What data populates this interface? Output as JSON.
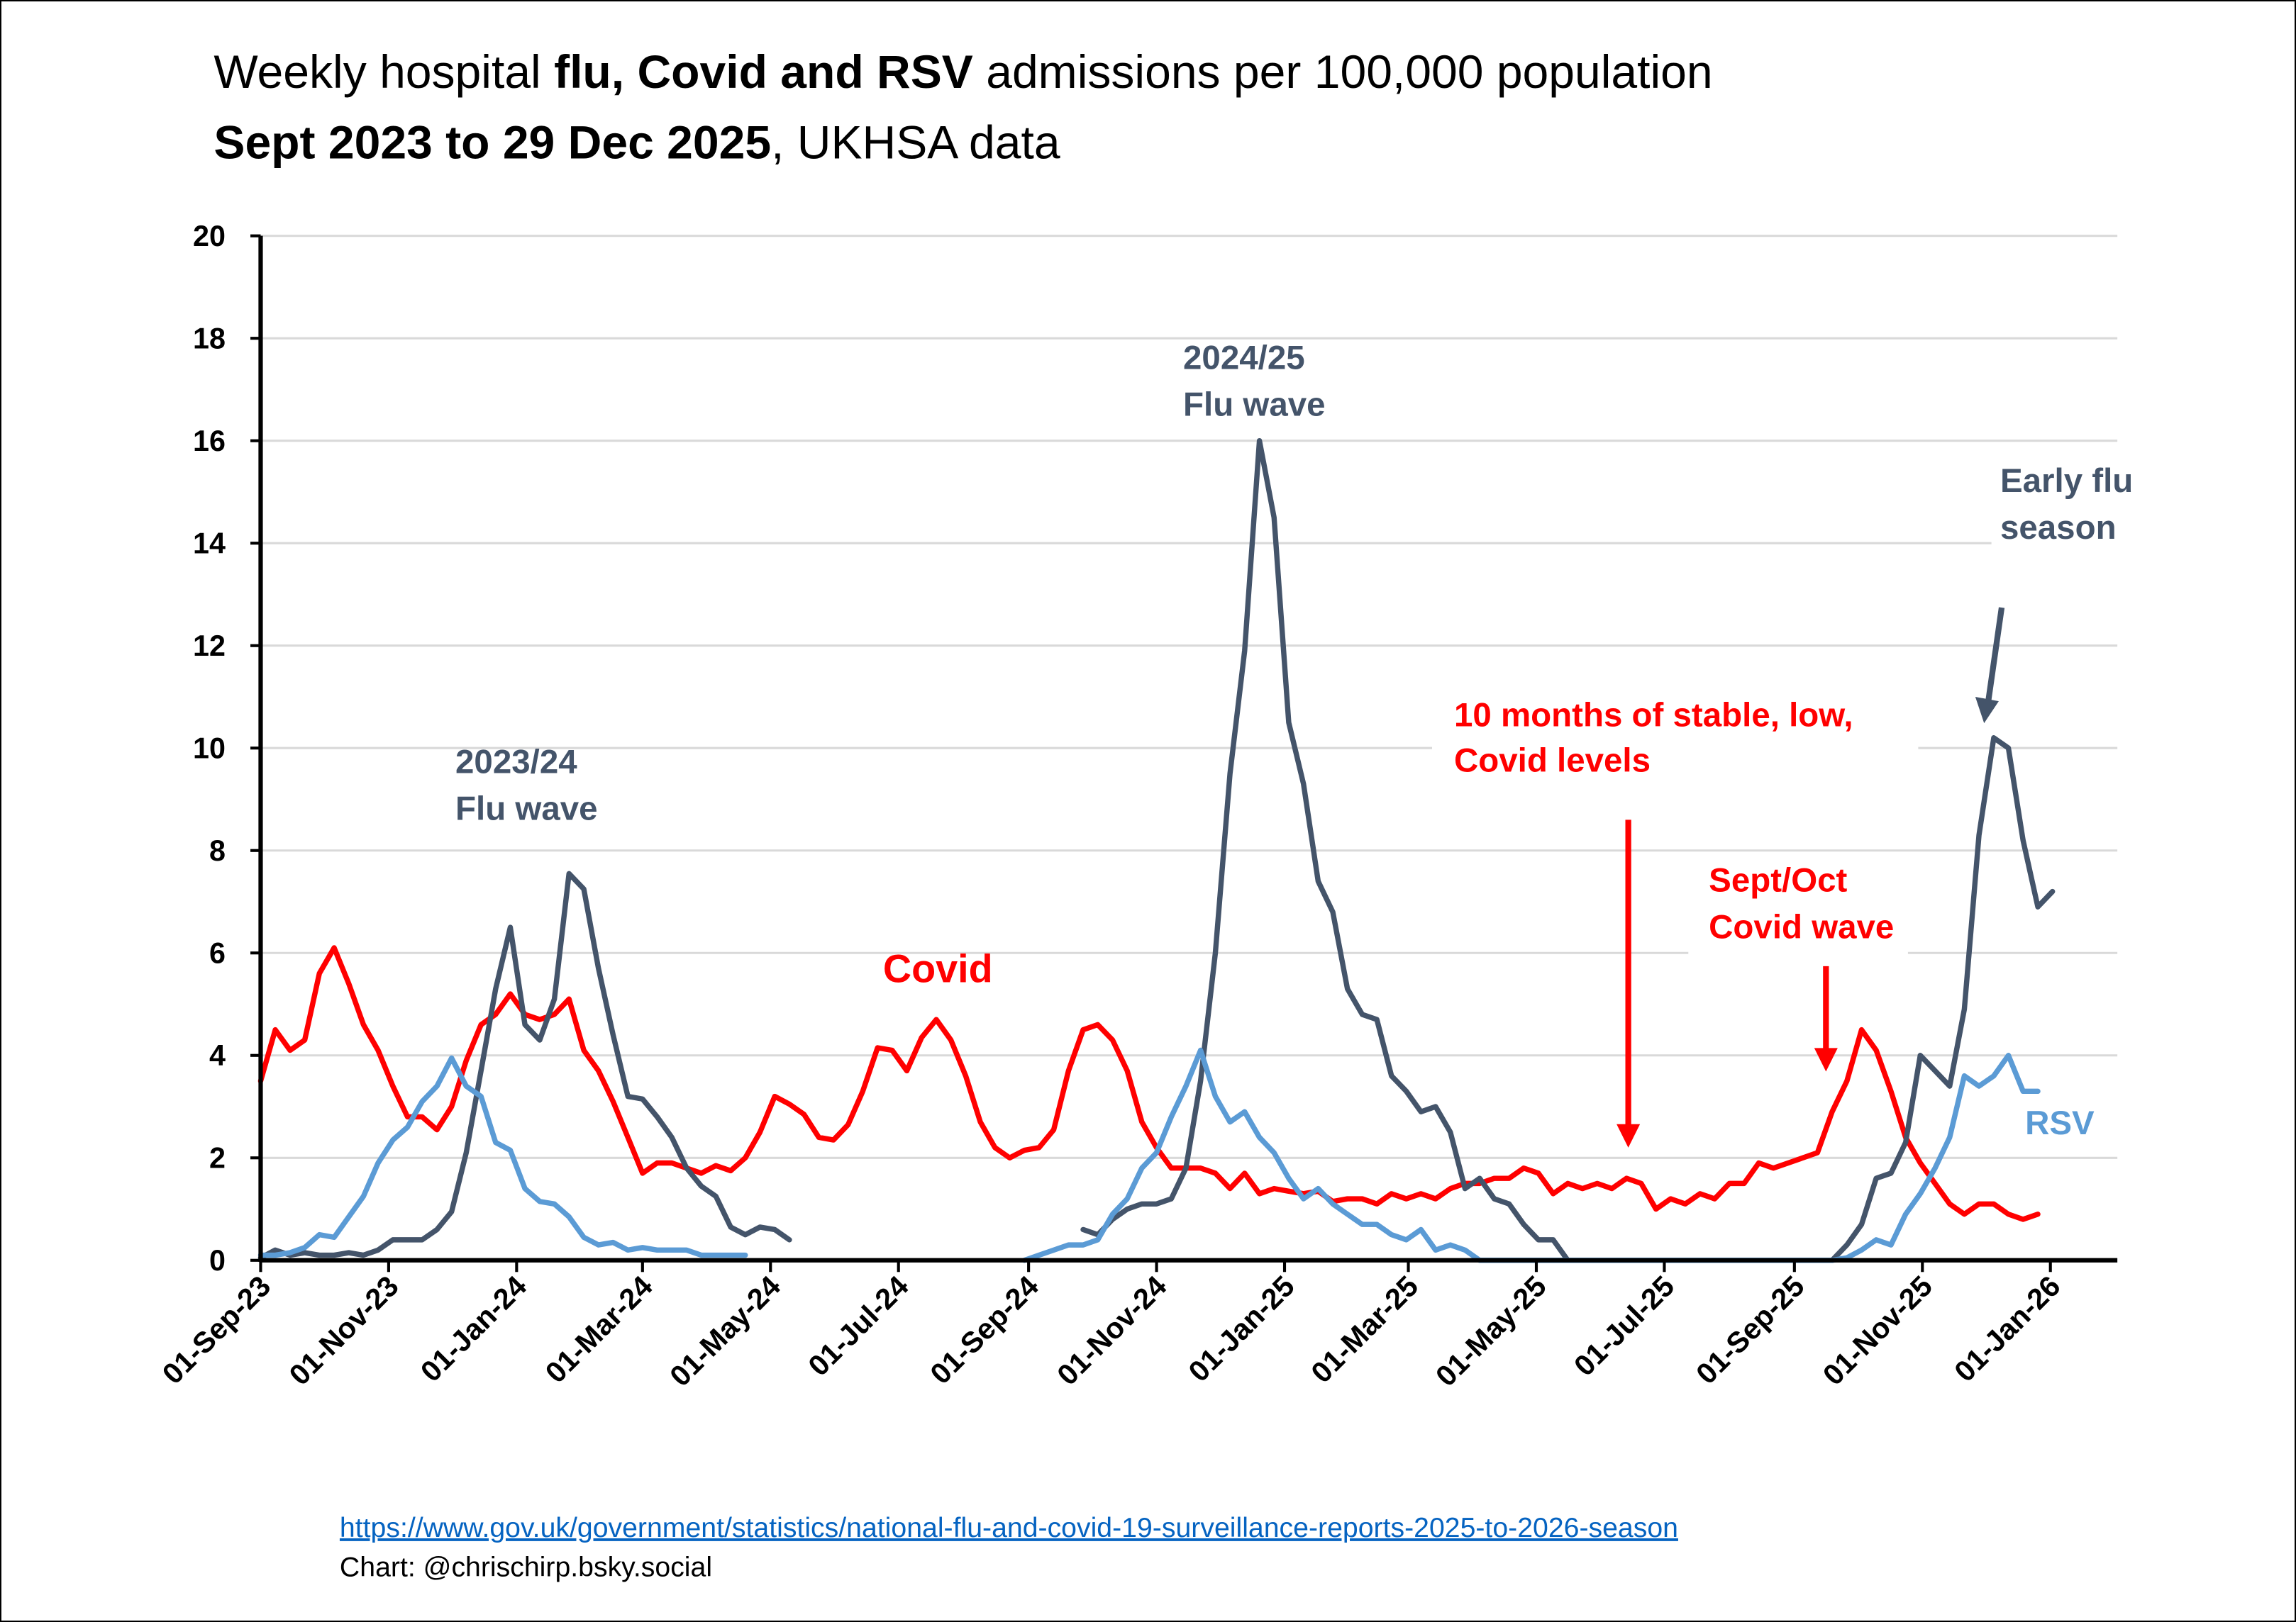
{
  "chart_data": {
    "type": "line",
    "title": {
      "line1_pre": "Weekly hospital ",
      "line1_bold": "flu, Covid and RSV",
      "line1_post": " admissions per 100,000 population",
      "line2_bold": "Sept 2023 to 29 Dec 2025",
      "line2_post": ", UKHSA data"
    },
    "xlabel": "",
    "ylabel": "",
    "ylim": [
      0,
      20
    ],
    "y_ticks": [
      "0",
      "2",
      "4",
      "6",
      "8",
      "10",
      "12",
      "14",
      "16",
      "18",
      "20"
    ],
    "grid": true,
    "x_start": "2023-09-01",
    "x_step_days": 7,
    "x_ticks": [
      {
        "date": "2023-09-01",
        "label": "01-Sep-23"
      },
      {
        "date": "2023-11-01",
        "label": "01-Nov-23"
      },
      {
        "date": "2024-01-01",
        "label": "01-Jan-24"
      },
      {
        "date": "2024-03-01",
        "label": "01-Mar-24"
      },
      {
        "date": "2024-05-01",
        "label": "01-May-24"
      },
      {
        "date": "2024-07-01",
        "label": "01-Jul-24"
      },
      {
        "date": "2024-09-01",
        "label": "01-Sep-24"
      },
      {
        "date": "2024-11-01",
        "label": "01-Nov-24"
      },
      {
        "date": "2025-01-01",
        "label": "01-Jan-25"
      },
      {
        "date": "2025-03-01",
        "label": "01-Mar-25"
      },
      {
        "date": "2025-05-01",
        "label": "01-May-25"
      },
      {
        "date": "2025-07-01",
        "label": "01-Jul-25"
      },
      {
        "date": "2025-09-01",
        "label": "01-Sep-25"
      },
      {
        "date": "2025-11-01",
        "label": "01-Nov-25"
      },
      {
        "date": "2026-01-01",
        "label": "01-Jan-26"
      }
    ],
    "series": [
      {
        "name": "Covid",
        "color": "#FF0000",
        "values": [
          3.5,
          4.5,
          4.1,
          4.3,
          5.6,
          6.1,
          5.4,
          4.6,
          4.1,
          3.4,
          2.8,
          2.8,
          2.55,
          3.0,
          3.9,
          4.6,
          4.8,
          5.2,
          4.8,
          4.7,
          4.8,
          5.1,
          4.1,
          3.7,
          3.1,
          2.4,
          1.7,
          1.9,
          1.9,
          1.8,
          1.7,
          1.85,
          1.75,
          2.0,
          2.5,
          3.2,
          3.05,
          2.85,
          2.4,
          2.35,
          2.65,
          3.3,
          4.15,
          4.1,
          3.7,
          4.35,
          4.7,
          4.3,
          3.6,
          2.7,
          2.2,
          2.0,
          2.15,
          2.2,
          2.55,
          3.7,
          4.5,
          4.6,
          4.3,
          3.7,
          2.7,
          2.2,
          1.8,
          1.8,
          1.8,
          1.7,
          1.4,
          1.7,
          1.3,
          1.4,
          1.35,
          1.3,
          1.35,
          1.15,
          1.2,
          1.2,
          1.1,
          1.3,
          1.2,
          1.3,
          1.2,
          1.4,
          1.5,
          1.5,
          1.6,
          1.6,
          1.8,
          1.7,
          1.3,
          1.5,
          1.4,
          1.5,
          1.4,
          1.6,
          1.5,
          1.0,
          1.2,
          1.1,
          1.3,
          1.2,
          1.5,
          1.5,
          1.9,
          1.8,
          1.9,
          2.0,
          2.1,
          2.9,
          3.5,
          4.5,
          4.1,
          3.3,
          2.4,
          1.9,
          1.5,
          1.1,
          0.9,
          1.1,
          1.1,
          0.9,
          0.8,
          0.9
        ]
      },
      {
        "name": "Flu",
        "color": "#44546A",
        "values": [
          0.05,
          0.2,
          0.1,
          0.15,
          0.1,
          0.1,
          0.15,
          0.1,
          0.2,
          0.4,
          0.4,
          0.4,
          0.6,
          0.95,
          2.1,
          3.7,
          5.3,
          6.5,
          4.6,
          4.3,
          5.1,
          7.55,
          7.25,
          5.7,
          4.4,
          3.2,
          3.15,
          2.8,
          2.4,
          1.8,
          1.45,
          1.25,
          0.65,
          0.5,
          0.65,
          0.6,
          0.4,
          null,
          null,
          null,
          null,
          null,
          null,
          null,
          null,
          null,
          null,
          null,
          null,
          null,
          null,
          null,
          null,
          null,
          null,
          null,
          0.6,
          0.5,
          0.8,
          1.0,
          1.1,
          1.1,
          1.2,
          1.8,
          3.5,
          6.0,
          9.5,
          11.9,
          16.0,
          14.5,
          10.5,
          9.3,
          7.4,
          6.8,
          5.3,
          4.8,
          4.7,
          3.6,
          3.3,
          2.9,
          3.0,
          2.5,
          1.4,
          1.6,
          1.2,
          1.1,
          0.7,
          0.4,
          0.4,
          0,
          0,
          0,
          0,
          0,
          0,
          0,
          0,
          0,
          0,
          0,
          0,
          0,
          0,
          0,
          0,
          0,
          0,
          0,
          0.3,
          0.7,
          1.6,
          1.7,
          2.3,
          4.0,
          3.7,
          3.4,
          4.9,
          8.3,
          10.2,
          10.0,
          8.2,
          6.9,
          7.2
        ]
      },
      {
        "name": "RSV",
        "color": "#5B9BD5",
        "values": [
          0.1,
          0.1,
          0.15,
          0.25,
          0.5,
          0.45,
          0.85,
          1.25,
          1.9,
          2.35,
          2.6,
          3.1,
          3.4,
          3.95,
          3.4,
          3.2,
          2.3,
          2.15,
          1.4,
          1.15,
          1.1,
          0.85,
          0.45,
          0.3,
          0.35,
          0.2,
          0.25,
          0.2,
          0.2,
          0.2,
          0.1,
          0.1,
          0.1,
          0.1,
          null,
          null,
          null,
          null,
          null,
          null,
          null,
          null,
          null,
          null,
          null,
          null,
          null,
          null,
          null,
          null,
          null,
          null,
          0,
          0.1,
          0.2,
          0.3,
          0.3,
          0.4,
          0.9,
          1.2,
          1.8,
          2.1,
          2.8,
          3.4,
          4.1,
          3.2,
          2.7,
          2.9,
          2.4,
          2.1,
          1.6,
          1.2,
          1.4,
          1.1,
          0.9,
          0.7,
          0.7,
          0.5,
          0.4,
          0.6,
          0.2,
          0.3,
          0.2,
          0,
          0,
          0,
          0,
          0,
          0,
          0,
          0,
          0,
          0,
          0,
          0,
          0,
          0,
          0,
          0,
          0,
          0,
          0,
          0,
          0,
          0,
          0,
          0,
          0,
          0.05,
          0.2,
          0.4,
          0.3,
          0.9,
          1.3,
          1.8,
          2.4,
          3.6,
          3.4,
          3.6,
          4.0,
          3.3,
          3.3
        ]
      }
    ],
    "annotations": {
      "flu_2324_l1": "2023/24",
      "flu_2324_l2": "Flu wave",
      "flu_2425_l1": "2024/25",
      "flu_2425_l2": "Flu wave",
      "early_flu_l1": "Early flu",
      "early_flu_l2": "season",
      "covid_label": "Covid",
      "stable_l1": "10 months of stable, low,",
      "stable_l2": "Covid levels",
      "septoct_l1": "Sept/Oct",
      "septoct_l2": "Covid wave",
      "rsv_label": "RSV"
    }
  },
  "footer": {
    "source_url": "https://www.gov.uk/government/statistics/national-flu-and-covid-19-surveillance-reports-2025-to-2026-season",
    "credit": "Chart: @chrischirp.bsky.social"
  }
}
